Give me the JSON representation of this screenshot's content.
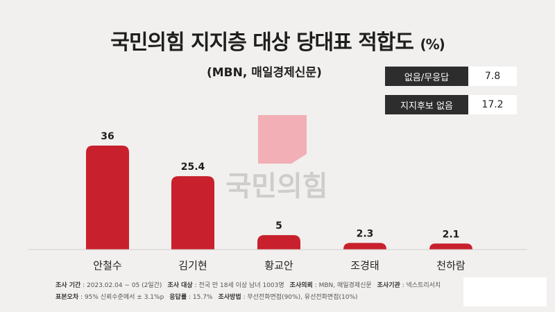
{
  "title": "국민의힘 지지층 대상 당대표 적합도",
  "title_unit": "(%)",
  "subtitle": "(MBN, 매일경제신문)",
  "side_table": [
    {
      "label": "없음/무응답",
      "value": "7.8"
    },
    {
      "label": "지지후보 없음",
      "value": "17.2"
    }
  ],
  "watermark": "국민의힘",
  "chart_data": {
    "type": "bar",
    "categories": [
      "안철수",
      "김기현",
      "황교안",
      "조경태",
      "천하람"
    ],
    "values": [
      36,
      25.4,
      5,
      2.3,
      2.1
    ],
    "data_labels": [
      "36",
      "25.4",
      "5",
      "2.3",
      "2.1"
    ],
    "title": "국민의힘 지지층 대상 당대표 적합도",
    "ylim": [
      0,
      36
    ],
    "grid": false,
    "bar_color": "#c8202c"
  },
  "footer": {
    "line1": [
      {
        "key": "조사 기간",
        "value": "2023.02.04 ~ 05 (2일간)"
      },
      {
        "key": "조사 대상",
        "value": "전국 만 18세 이상 남녀 1003명"
      },
      {
        "key": "조사의뢰",
        "value": "MBN, 매일경제신문"
      },
      {
        "key": "조사기관",
        "value": "넥스트리서치"
      }
    ],
    "line2": [
      {
        "key": "표본오차",
        "value": "95% 신뢰수준에서 ± 3.1%p"
      },
      {
        "key": "응답률",
        "value": "15.7%"
      },
      {
        "key": "조사방법",
        "value": "무선전화면접(90%), 유선전화면접(10%)"
      }
    ]
  },
  "colors": {
    "background": "#f1f0ee",
    "bar": "#c8202c",
    "watermark_text": "#cfcccb",
    "watermark_logo": "#f2a3ab"
  }
}
